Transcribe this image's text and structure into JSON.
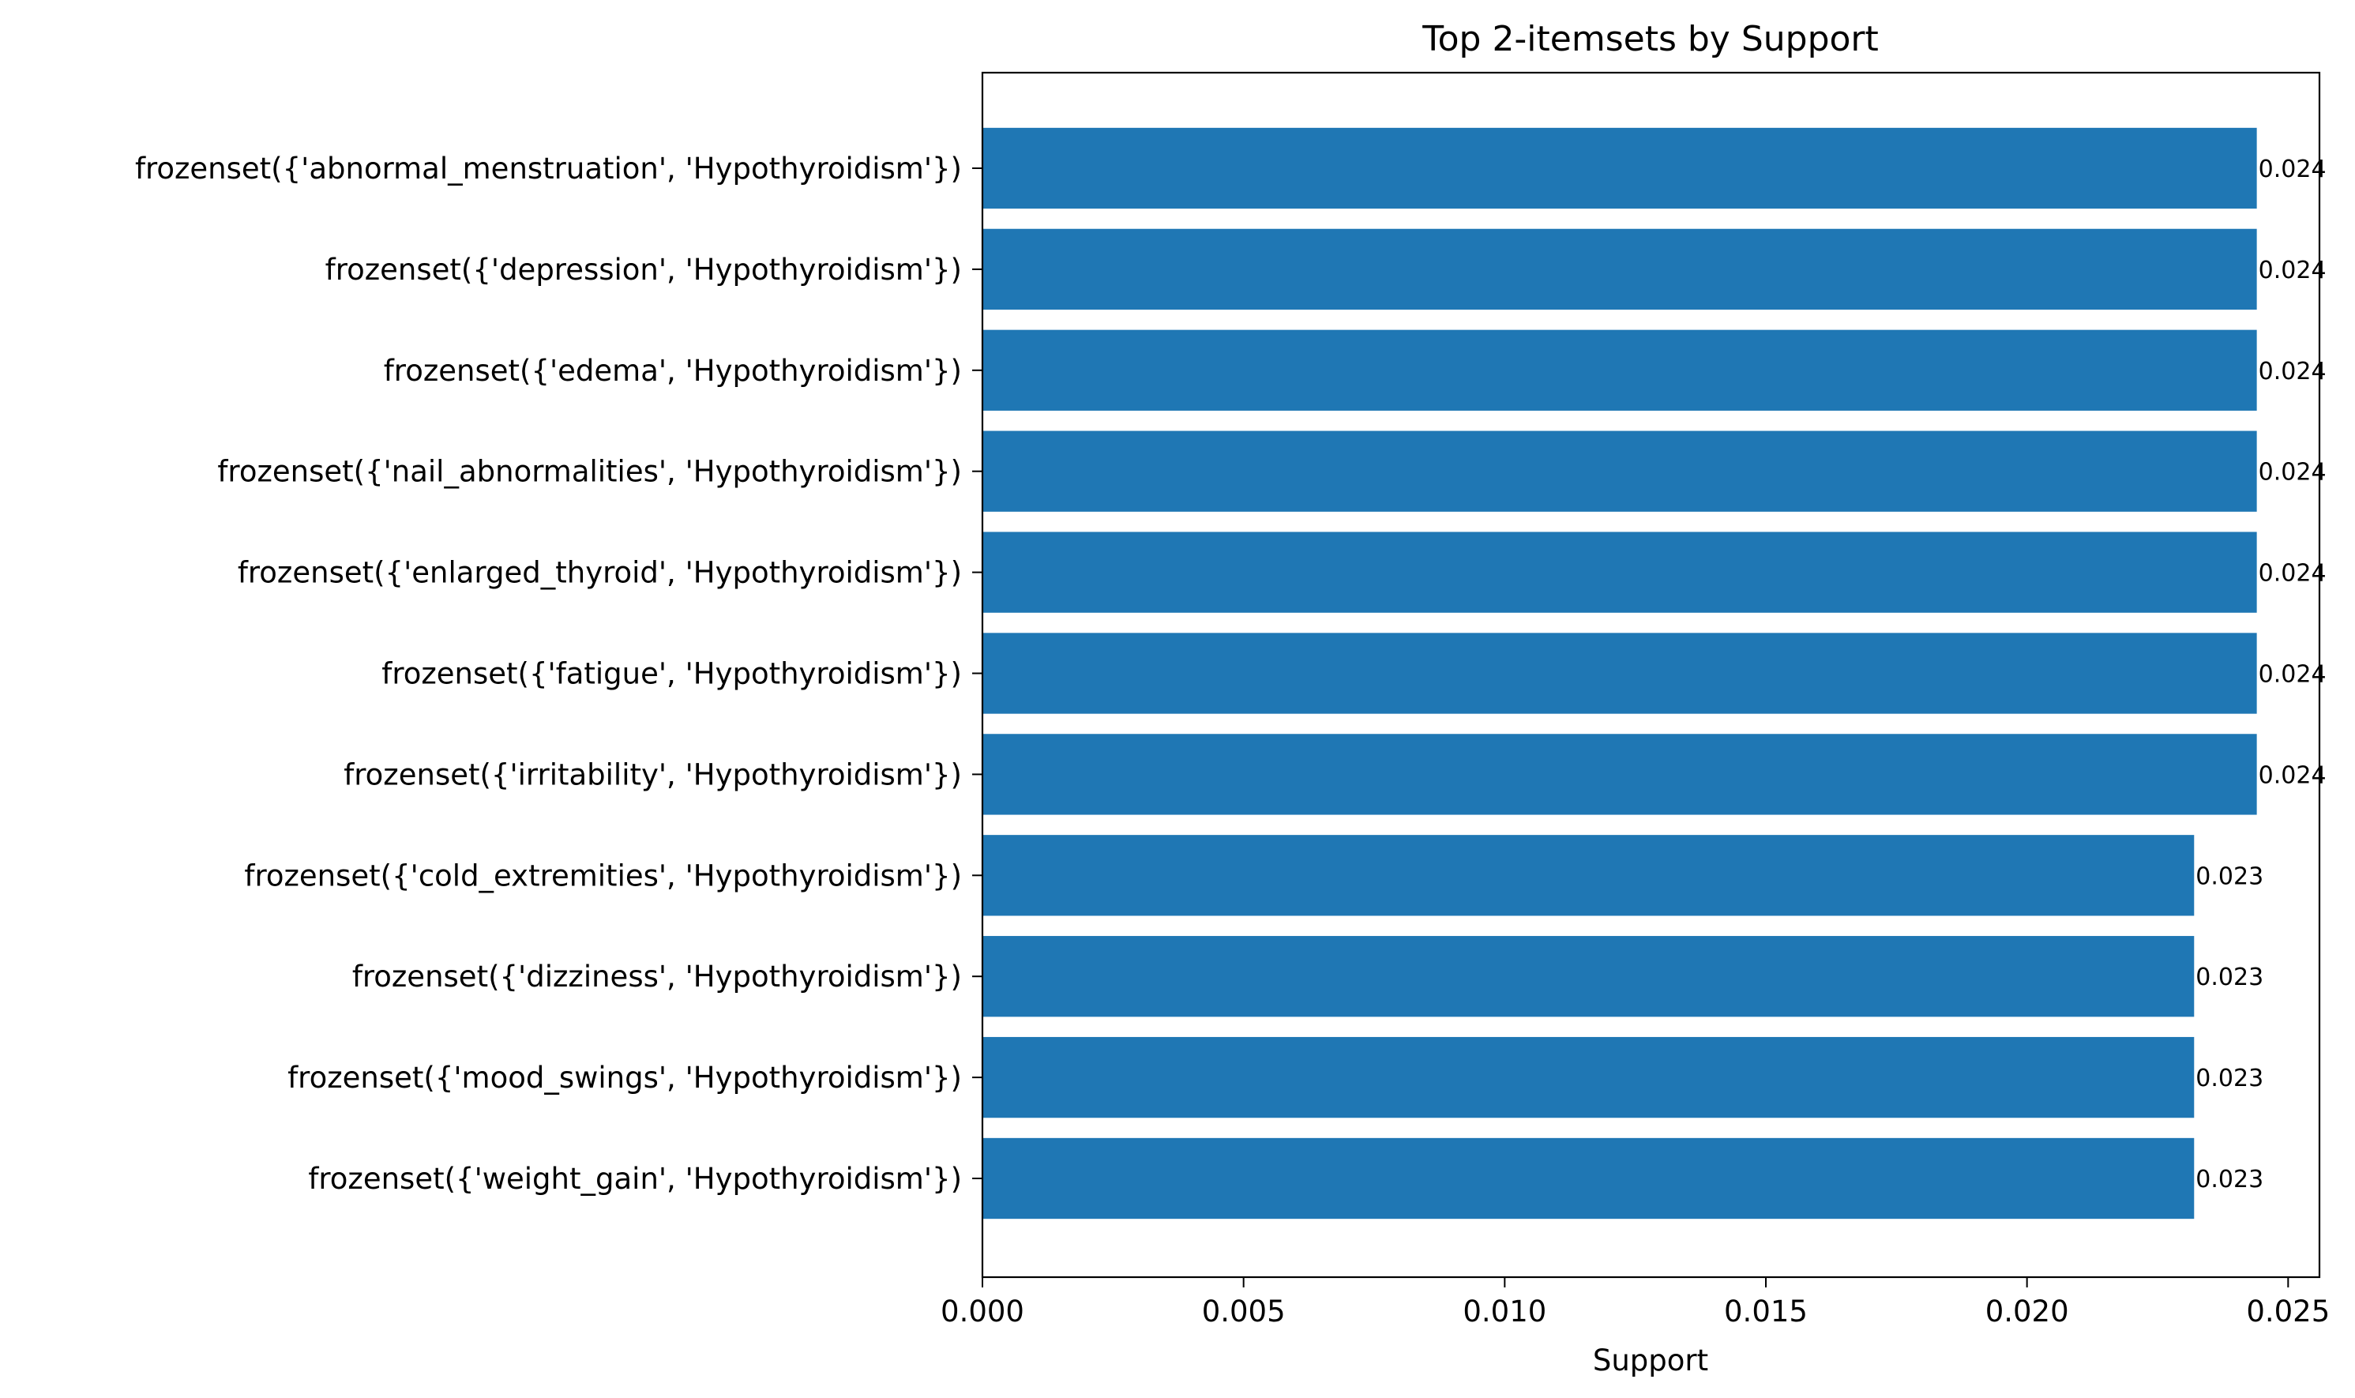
{
  "chart_data": {
    "type": "bar",
    "orientation": "horizontal",
    "title": "Top 2-itemsets by Support",
    "xlabel": "Support",
    "ylabel": "",
    "xlim": [
      0,
      0.0256
    ],
    "xticks": [
      "0.000",
      "0.005",
      "0.010",
      "0.015",
      "0.020",
      "0.025"
    ],
    "xtick_values": [
      0,
      0.005,
      0.01,
      0.015,
      0.02,
      0.025
    ],
    "grid": false,
    "bar_color": "#1f77b4",
    "categories": [
      "frozenset({'abnormal_menstruation', 'Hypothyroidism'})",
      "frozenset({'depression', 'Hypothyroidism'})",
      "frozenset({'edema', 'Hypothyroidism'})",
      "frozenset({'nail_abnormalities', 'Hypothyroidism'})",
      "frozenset({'enlarged_thyroid', 'Hypothyroidism'})",
      "frozenset({'fatigue', 'Hypothyroidism'})",
      "frozenset({'irritability', 'Hypothyroidism'})",
      "frozenset({'cold_extremities', 'Hypothyroidism'})",
      "frozenset({'dizziness', 'Hypothyroidism'})",
      "frozenset({'mood_swings', 'Hypothyroidism'})",
      "frozenset({'weight_gain', 'Hypothyroidism'})"
    ],
    "values": [
      0.0244,
      0.0244,
      0.0244,
      0.0244,
      0.0244,
      0.0244,
      0.0244,
      0.0232,
      0.0232,
      0.0232,
      0.0232
    ],
    "data_labels": [
      "0.024",
      "0.024",
      "0.024",
      "0.024",
      "0.024",
      "0.024",
      "0.024",
      "0.023",
      "0.023",
      "0.023",
      "0.023"
    ]
  }
}
